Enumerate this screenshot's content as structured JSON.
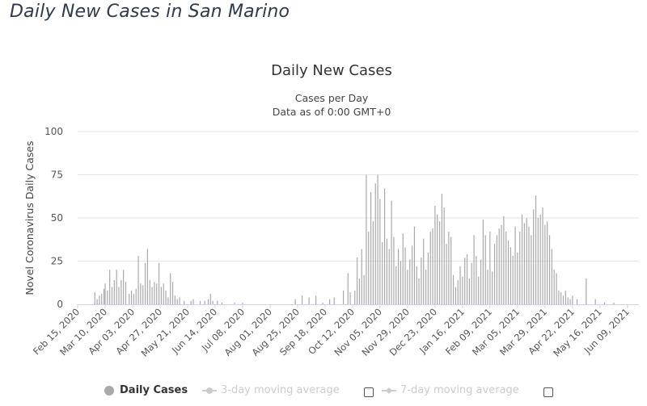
{
  "page": {
    "title": "Daily New Cases in San Marino"
  },
  "chart_data": {
    "type": "bar",
    "title": "Daily New Cases",
    "subtitle_lines": [
      "Cases per Day",
      "Data as of 0:00 GMT+0"
    ],
    "ylabel": "Novel Coronavirus Daily Cases",
    "xlabel": "",
    "ylim": [
      0,
      100
    ],
    "yticks": [
      0,
      25,
      50,
      75,
      100
    ],
    "xlim": [
      "2020-02-15",
      "2021-06-19"
    ],
    "grid": true,
    "x_tick_labels": [
      "Feb 15, 2020",
      "Mar 10, 2020",
      "Apr 03, 2020",
      "Apr 27, 2020",
      "May 21, 2020",
      "Jun 14, 2020",
      "Jul 08, 2020",
      "Aug 01, 2020",
      "Aug 25, 2020",
      "Sep 18, 2020",
      "Oct 12, 2020",
      "Nov 05, 2020",
      "Nov 29, 2020",
      "Dec 23, 2020",
      "Jan 16, 2021",
      "Feb 09, 2021",
      "Mar 05, 2021",
      "Mar 29, 2021",
      "Apr 22, 2021",
      "May 16, 2021",
      "Jun 09, 2021"
    ],
    "x_ticks": [
      "2020-02-15",
      "2020-03-10",
      "2020-04-03",
      "2020-04-27",
      "2020-05-21",
      "2020-06-14",
      "2020-07-08",
      "2020-08-01",
      "2020-08-25",
      "2020-09-18",
      "2020-10-12",
      "2020-11-05",
      "2020-11-29",
      "2020-12-23",
      "2021-01-16",
      "2021-02-09",
      "2021-03-05",
      "2021-03-29",
      "2021-04-22",
      "2021-05-16",
      "2021-06-09"
    ],
    "series": [
      {
        "name": "Daily Cases",
        "color": "#a9a9a9",
        "points": [
          [
            "2020-03-01",
            7
          ],
          [
            "2020-03-03",
            3
          ],
          [
            "2020-03-05",
            5
          ],
          [
            "2020-03-07",
            6
          ],
          [
            "2020-03-09",
            9
          ],
          [
            "2020-03-10",
            12
          ],
          [
            "2020-03-12",
            8
          ],
          [
            "2020-03-14",
            20
          ],
          [
            "2020-03-16",
            10
          ],
          [
            "2020-03-18",
            14
          ],
          [
            "2020-03-20",
            20
          ],
          [
            "2020-03-22",
            10
          ],
          [
            "2020-03-24",
            14
          ],
          [
            "2020-03-26",
            20
          ],
          [
            "2020-03-28",
            13
          ],
          [
            "2020-03-31",
            6
          ],
          [
            "2020-04-02",
            8
          ],
          [
            "2020-04-04",
            6
          ],
          [
            "2020-04-06",
            9
          ],
          [
            "2020-04-08",
            28
          ],
          [
            "2020-04-10",
            12
          ],
          [
            "2020-04-12",
            11
          ],
          [
            "2020-04-14",
            24
          ],
          [
            "2020-04-16",
            32
          ],
          [
            "2020-04-18",
            14
          ],
          [
            "2020-04-20",
            10
          ],
          [
            "2020-04-22",
            13
          ],
          [
            "2020-04-24",
            12
          ],
          [
            "2020-04-26",
            24
          ],
          [
            "2020-04-28",
            10
          ],
          [
            "2020-04-30",
            12
          ],
          [
            "2020-05-02",
            8
          ],
          [
            "2020-05-04",
            4
          ],
          [
            "2020-05-06",
            18
          ],
          [
            "2020-05-08",
            13
          ],
          [
            "2020-05-10",
            5
          ],
          [
            "2020-05-12",
            3
          ],
          [
            "2020-05-14",
            4
          ],
          [
            "2020-05-18",
            2
          ],
          [
            "2020-05-24",
            2
          ],
          [
            "2020-05-26",
            3
          ],
          [
            "2020-06-01",
            2
          ],
          [
            "2020-06-05",
            2
          ],
          [
            "2020-06-08",
            3
          ],
          [
            "2020-06-10",
            6
          ],
          [
            "2020-06-12",
            2
          ],
          [
            "2020-06-16",
            2
          ],
          [
            "2020-06-20",
            1
          ],
          [
            "2020-07-01",
            1
          ],
          [
            "2020-07-08",
            1
          ],
          [
            "2020-08-23",
            3
          ],
          [
            "2020-08-29",
            5
          ],
          [
            "2020-09-04",
            4
          ],
          [
            "2020-09-10",
            5
          ],
          [
            "2020-09-16",
            1
          ],
          [
            "2020-09-22",
            3
          ],
          [
            "2020-09-26",
            4
          ],
          [
            "2020-10-04",
            8
          ],
          [
            "2020-10-08",
            18
          ],
          [
            "2020-10-10",
            7
          ],
          [
            "2020-10-14",
            8
          ],
          [
            "2020-10-16",
            27
          ],
          [
            "2020-10-18",
            15
          ],
          [
            "2020-10-20",
            32
          ],
          [
            "2020-10-22",
            17
          ],
          [
            "2020-10-24",
            75
          ],
          [
            "2020-10-26",
            42
          ],
          [
            "2020-10-28",
            65
          ],
          [
            "2020-10-30",
            48
          ],
          [
            "2020-11-01",
            70
          ],
          [
            "2020-11-03",
            75
          ],
          [
            "2020-11-05",
            61
          ],
          [
            "2020-11-07",
            36
          ],
          [
            "2020-11-09",
            67
          ],
          [
            "2020-11-11",
            38
          ],
          [
            "2020-11-13",
            32
          ],
          [
            "2020-11-15",
            60
          ],
          [
            "2020-11-17",
            39
          ],
          [
            "2020-11-19",
            22
          ],
          [
            "2020-11-21",
            32
          ],
          [
            "2020-11-23",
            25
          ],
          [
            "2020-11-25",
            41
          ],
          [
            "2020-11-27",
            33
          ],
          [
            "2020-11-29",
            20
          ],
          [
            "2020-12-01",
            26
          ],
          [
            "2020-12-03",
            34
          ],
          [
            "2020-12-05",
            45
          ],
          [
            "2020-12-07",
            22
          ],
          [
            "2020-12-09",
            15
          ],
          [
            "2020-12-11",
            27
          ],
          [
            "2020-12-13",
            38
          ],
          [
            "2020-12-15",
            20
          ],
          [
            "2020-12-17",
            30
          ],
          [
            "2020-12-19",
            42
          ],
          [
            "2020-12-21",
            44
          ],
          [
            "2020-12-23",
            57
          ],
          [
            "2020-12-25",
            52
          ],
          [
            "2020-12-27",
            48
          ],
          [
            "2020-12-29",
            64
          ],
          [
            "2020-12-31",
            56
          ],
          [
            "2021-01-02",
            35
          ],
          [
            "2021-01-04",
            42
          ],
          [
            "2021-01-06",
            39
          ],
          [
            "2021-01-08",
            17
          ],
          [
            "2021-01-10",
            10
          ],
          [
            "2021-01-12",
            14
          ],
          [
            "2021-01-14",
            22
          ],
          [
            "2021-01-16",
            16
          ],
          [
            "2021-01-18",
            27
          ],
          [
            "2021-01-20",
            29
          ],
          [
            "2021-01-22",
            15
          ],
          [
            "2021-01-24",
            24
          ],
          [
            "2021-01-26",
            40
          ],
          [
            "2021-01-28",
            28
          ],
          [
            "2021-01-30",
            16
          ],
          [
            "2021-02-01",
            26
          ],
          [
            "2021-02-03",
            49
          ],
          [
            "2021-02-05",
            40
          ],
          [
            "2021-02-07",
            20
          ],
          [
            "2021-02-09",
            42
          ],
          [
            "2021-02-11",
            19
          ],
          [
            "2021-02-13",
            35
          ],
          [
            "2021-02-15",
            40
          ],
          [
            "2021-02-17",
            44
          ],
          [
            "2021-02-19",
            46
          ],
          [
            "2021-02-21",
            51
          ],
          [
            "2021-02-23",
            42
          ],
          [
            "2021-02-25",
            37
          ],
          [
            "2021-02-27",
            33
          ],
          [
            "2021-03-01",
            28
          ],
          [
            "2021-03-03",
            45
          ],
          [
            "2021-03-05",
            30
          ],
          [
            "2021-03-07",
            42
          ],
          [
            "2021-03-09",
            52
          ],
          [
            "2021-03-11",
            47
          ],
          [
            "2021-03-13",
            50
          ],
          [
            "2021-03-15",
            45
          ],
          [
            "2021-03-17",
            40
          ],
          [
            "2021-03-19",
            55
          ],
          [
            "2021-03-21",
            63
          ],
          [
            "2021-03-23",
            50
          ],
          [
            "2021-03-25",
            52
          ],
          [
            "2021-03-27",
            56
          ],
          [
            "2021-03-29",
            46
          ],
          [
            "2021-03-31",
            48
          ],
          [
            "2021-04-02",
            40
          ],
          [
            "2021-04-04",
            32
          ],
          [
            "2021-04-06",
            20
          ],
          [
            "2021-04-08",
            18
          ],
          [
            "2021-04-10",
            8
          ],
          [
            "2021-04-12",
            7
          ],
          [
            "2021-04-14",
            5
          ],
          [
            "2021-04-16",
            8
          ],
          [
            "2021-04-18",
            4
          ],
          [
            "2021-04-20",
            3
          ],
          [
            "2021-04-22",
            5
          ],
          [
            "2021-04-26",
            3
          ],
          [
            "2021-05-04",
            15
          ],
          [
            "2021-05-12",
            3
          ],
          [
            "2021-05-20",
            1
          ],
          [
            "2021-05-28",
            1
          ]
        ]
      },
      {
        "name": "3-day moving average",
        "color": "#cccccc"
      },
      {
        "name": "7-day moving average",
        "color": "#cccccc"
      }
    ],
    "legend": {
      "position": "bottom",
      "checkboxes": [
        false,
        false
      ]
    }
  }
}
